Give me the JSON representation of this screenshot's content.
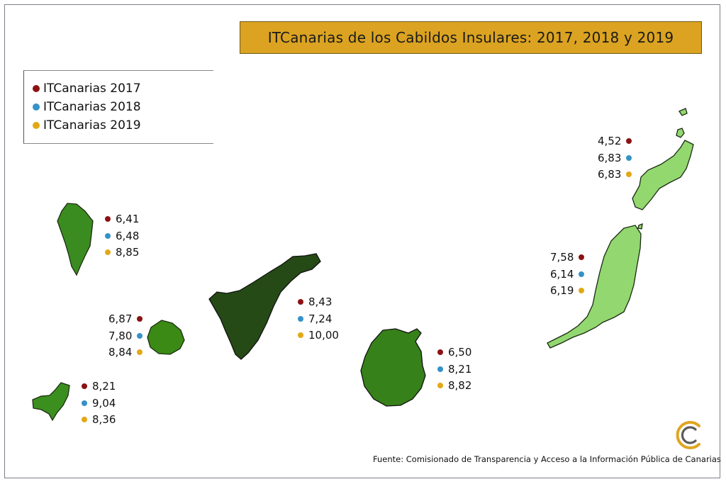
{
  "title": "ITCanarias de los Cabildos Insulares: 2017, 2018 y 2019",
  "colors": {
    "y2017": "#8b1214",
    "y2018": "#3591c8",
    "y2019": "#e2a816",
    "la_palma": "#3b8c20",
    "la_gomera": "#3a8a15",
    "el_hierro": "#3b8f1e",
    "tenerife": "#254a16",
    "gran_canaria": "#36811a",
    "fuerteventura": "#92d76f",
    "lanzarote": "#93d86f"
  },
  "legend": [
    {
      "label": "ITCanarias 2017",
      "color": "#8b1214"
    },
    {
      "label": "ITCanarias 2018",
      "color": "#3591c8"
    },
    {
      "label": "ITCanarias 2019",
      "color": "#e2a816"
    }
  ],
  "islands": {
    "lanzarote": {
      "v2017": "4,52",
      "v2018": "6,83",
      "v2019": "6,83"
    },
    "la_palma": {
      "v2017": "6,41",
      "v2018": "6,48",
      "v2019": "8,85"
    },
    "fuerteventura": {
      "v2017": "7,58",
      "v2018": "6,14",
      "v2019": "6,19"
    },
    "tenerife": {
      "v2017": "8,43",
      "v2018": "7,24",
      "v2019": "10,00"
    },
    "la_gomera": {
      "v2017": "6,87",
      "v2018": "7,80",
      "v2019": "8,84"
    },
    "gran_canaria": {
      "v2017": "6,50",
      "v2018": "8,21",
      "v2019": "8,82"
    },
    "el_hierro": {
      "v2017": "8,21",
      "v2018": "9,04",
      "v2019": "8,36"
    }
  },
  "source": "Fuente: Comisionado de Transparencia y Acceso a la Información Pública de Canarias",
  "logo_icon": "transparency-c-logo-icon"
}
